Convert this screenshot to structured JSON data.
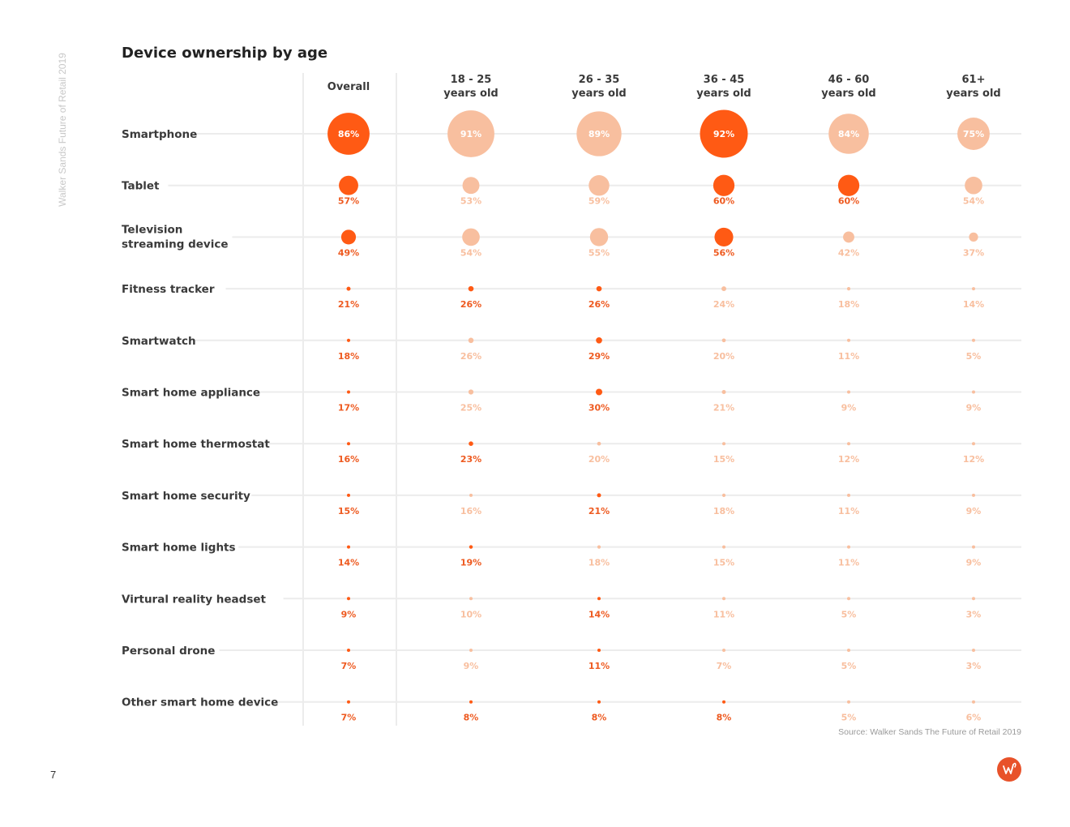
{
  "side_text": "Walker Sands Future of Retail 2019",
  "page_number": "7",
  "source": "Source: Walker Sands The Future of Retail 2019",
  "colors": {
    "highlight": "#ff5a14",
    "muted": "#f8bf9f",
    "grid": "#ececec"
  },
  "logo_icon": "walker-sands-logo",
  "chart_data": {
    "type": "bubble-matrix",
    "title": "Device ownership by age",
    "columns": [
      [
        "Overall"
      ],
      [
        "18 - 25",
        "years old"
      ],
      [
        "26 - 35",
        "years old"
      ],
      [
        "36 - 45",
        "years old"
      ],
      [
        "46 - 60",
        "years old"
      ],
      [
        "61+",
        "years old"
      ]
    ],
    "rows": [
      {
        "label": [
          "Smartphone"
        ],
        "values": [
          86,
          91,
          89,
          92,
          84,
          75
        ],
        "highlight": [
          true,
          false,
          false,
          true,
          false,
          false
        ]
      },
      {
        "label": [
          "Tablet"
        ],
        "values": [
          57,
          53,
          59,
          60,
          60,
          54
        ],
        "highlight": [
          true,
          false,
          false,
          true,
          true,
          false
        ]
      },
      {
        "label": [
          "Television",
          "streaming device"
        ],
        "values": [
          49,
          54,
          55,
          56,
          42,
          37
        ],
        "highlight": [
          true,
          false,
          false,
          true,
          false,
          false
        ]
      },
      {
        "label": [
          "Fitness tracker"
        ],
        "values": [
          21,
          26,
          26,
          24,
          18,
          14
        ],
        "highlight": [
          true,
          true,
          true,
          false,
          false,
          false
        ]
      },
      {
        "label": [
          "Smartwatch"
        ],
        "values": [
          18,
          26,
          29,
          20,
          11,
          5
        ],
        "highlight": [
          true,
          false,
          true,
          false,
          false,
          false
        ]
      },
      {
        "label": [
          "Smart home appliance"
        ],
        "values": [
          17,
          25,
          30,
          21,
          9,
          9
        ],
        "highlight": [
          true,
          false,
          true,
          false,
          false,
          false
        ]
      },
      {
        "label": [
          "Smart home thermostat"
        ],
        "values": [
          16,
          23,
          20,
          15,
          12,
          12
        ],
        "highlight": [
          true,
          true,
          false,
          false,
          false,
          false
        ]
      },
      {
        "label": [
          "Smart home security"
        ],
        "values": [
          15,
          16,
          21,
          18,
          11,
          9
        ],
        "highlight": [
          true,
          false,
          true,
          false,
          false,
          false
        ]
      },
      {
        "label": [
          "Smart home lights"
        ],
        "values": [
          14,
          19,
          18,
          15,
          11,
          9
        ],
        "highlight": [
          true,
          true,
          false,
          false,
          false,
          false
        ]
      },
      {
        "label": [
          "Virtural reality headset"
        ],
        "values": [
          9,
          10,
          14,
          11,
          5,
          3
        ],
        "highlight": [
          true,
          false,
          true,
          false,
          false,
          false
        ]
      },
      {
        "label": [
          "Personal drone"
        ],
        "values": [
          7,
          9,
          11,
          7,
          5,
          3
        ],
        "highlight": [
          true,
          false,
          true,
          false,
          false,
          false
        ]
      },
      {
        "label": [
          "Other smart home device"
        ],
        "values": [
          7,
          8,
          8,
          8,
          5,
          6
        ],
        "highlight": [
          true,
          true,
          true,
          true,
          false,
          false
        ]
      }
    ]
  }
}
